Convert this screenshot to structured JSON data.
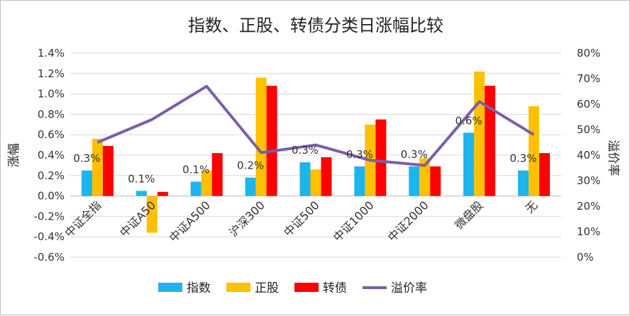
{
  "chart_data": {
    "type": "bar",
    "title": "指数、正股、转债分类日涨幅比较",
    "ylabel": "涨幅",
    "y2label": "溢价率",
    "ylim": [
      -0.6,
      1.4
    ],
    "y2lim": [
      0,
      80
    ],
    "yticks": [
      "1.4%",
      "1.2%",
      "1.0%",
      "0.8%",
      "0.6%",
      "0.4%",
      "0.2%",
      "0.0%",
      "-0.2%",
      "-0.4%",
      "-0.6%"
    ],
    "y2ticks": [
      "80%",
      "70%",
      "60%",
      "50%",
      "40%",
      "30%",
      "20%",
      "10%",
      "0%"
    ],
    "categories": [
      "中证全指",
      "中证A50",
      "中证A500",
      "沪深300",
      "中证500",
      "中证1000",
      "中证2000",
      "微盘股",
      "无"
    ],
    "series": [
      {
        "name": "指数",
        "type": "bar",
        "axis": "left",
        "color": "#1eb4ec",
        "values": [
          0.25,
          0.05,
          0.14,
          0.18,
          0.33,
          0.29,
          0.29,
          0.62,
          0.25
        ]
      },
      {
        "name": "正股",
        "type": "bar",
        "axis": "left",
        "color": "#ffc000",
        "values": [
          0.56,
          -0.36,
          0.25,
          1.16,
          0.26,
          0.7,
          0.37,
          1.22,
          0.88
        ]
      },
      {
        "name": "转债",
        "type": "bar",
        "axis": "left",
        "color": "#ff0000",
        "values": [
          0.49,
          0.04,
          0.42,
          1.08,
          0.38,
          0.75,
          0.29,
          1.08,
          0.42
        ]
      },
      {
        "name": "溢价率",
        "type": "line",
        "axis": "right",
        "color": "#7b5ea7",
        "values": [
          45,
          54,
          67,
          41,
          44,
          38,
          36,
          61,
          48
        ]
      }
    ],
    "data_labels": [
      "0.3%",
      "0.1%",
      "0.1%",
      "0.2%",
      "0.3%",
      "0.3%",
      "0.3%",
      "0.6%",
      "0.3%"
    ],
    "legend": {
      "position": "bottom",
      "items": [
        "指数",
        "正股",
        "转债",
        "溢价率"
      ]
    },
    "grid": true
  }
}
